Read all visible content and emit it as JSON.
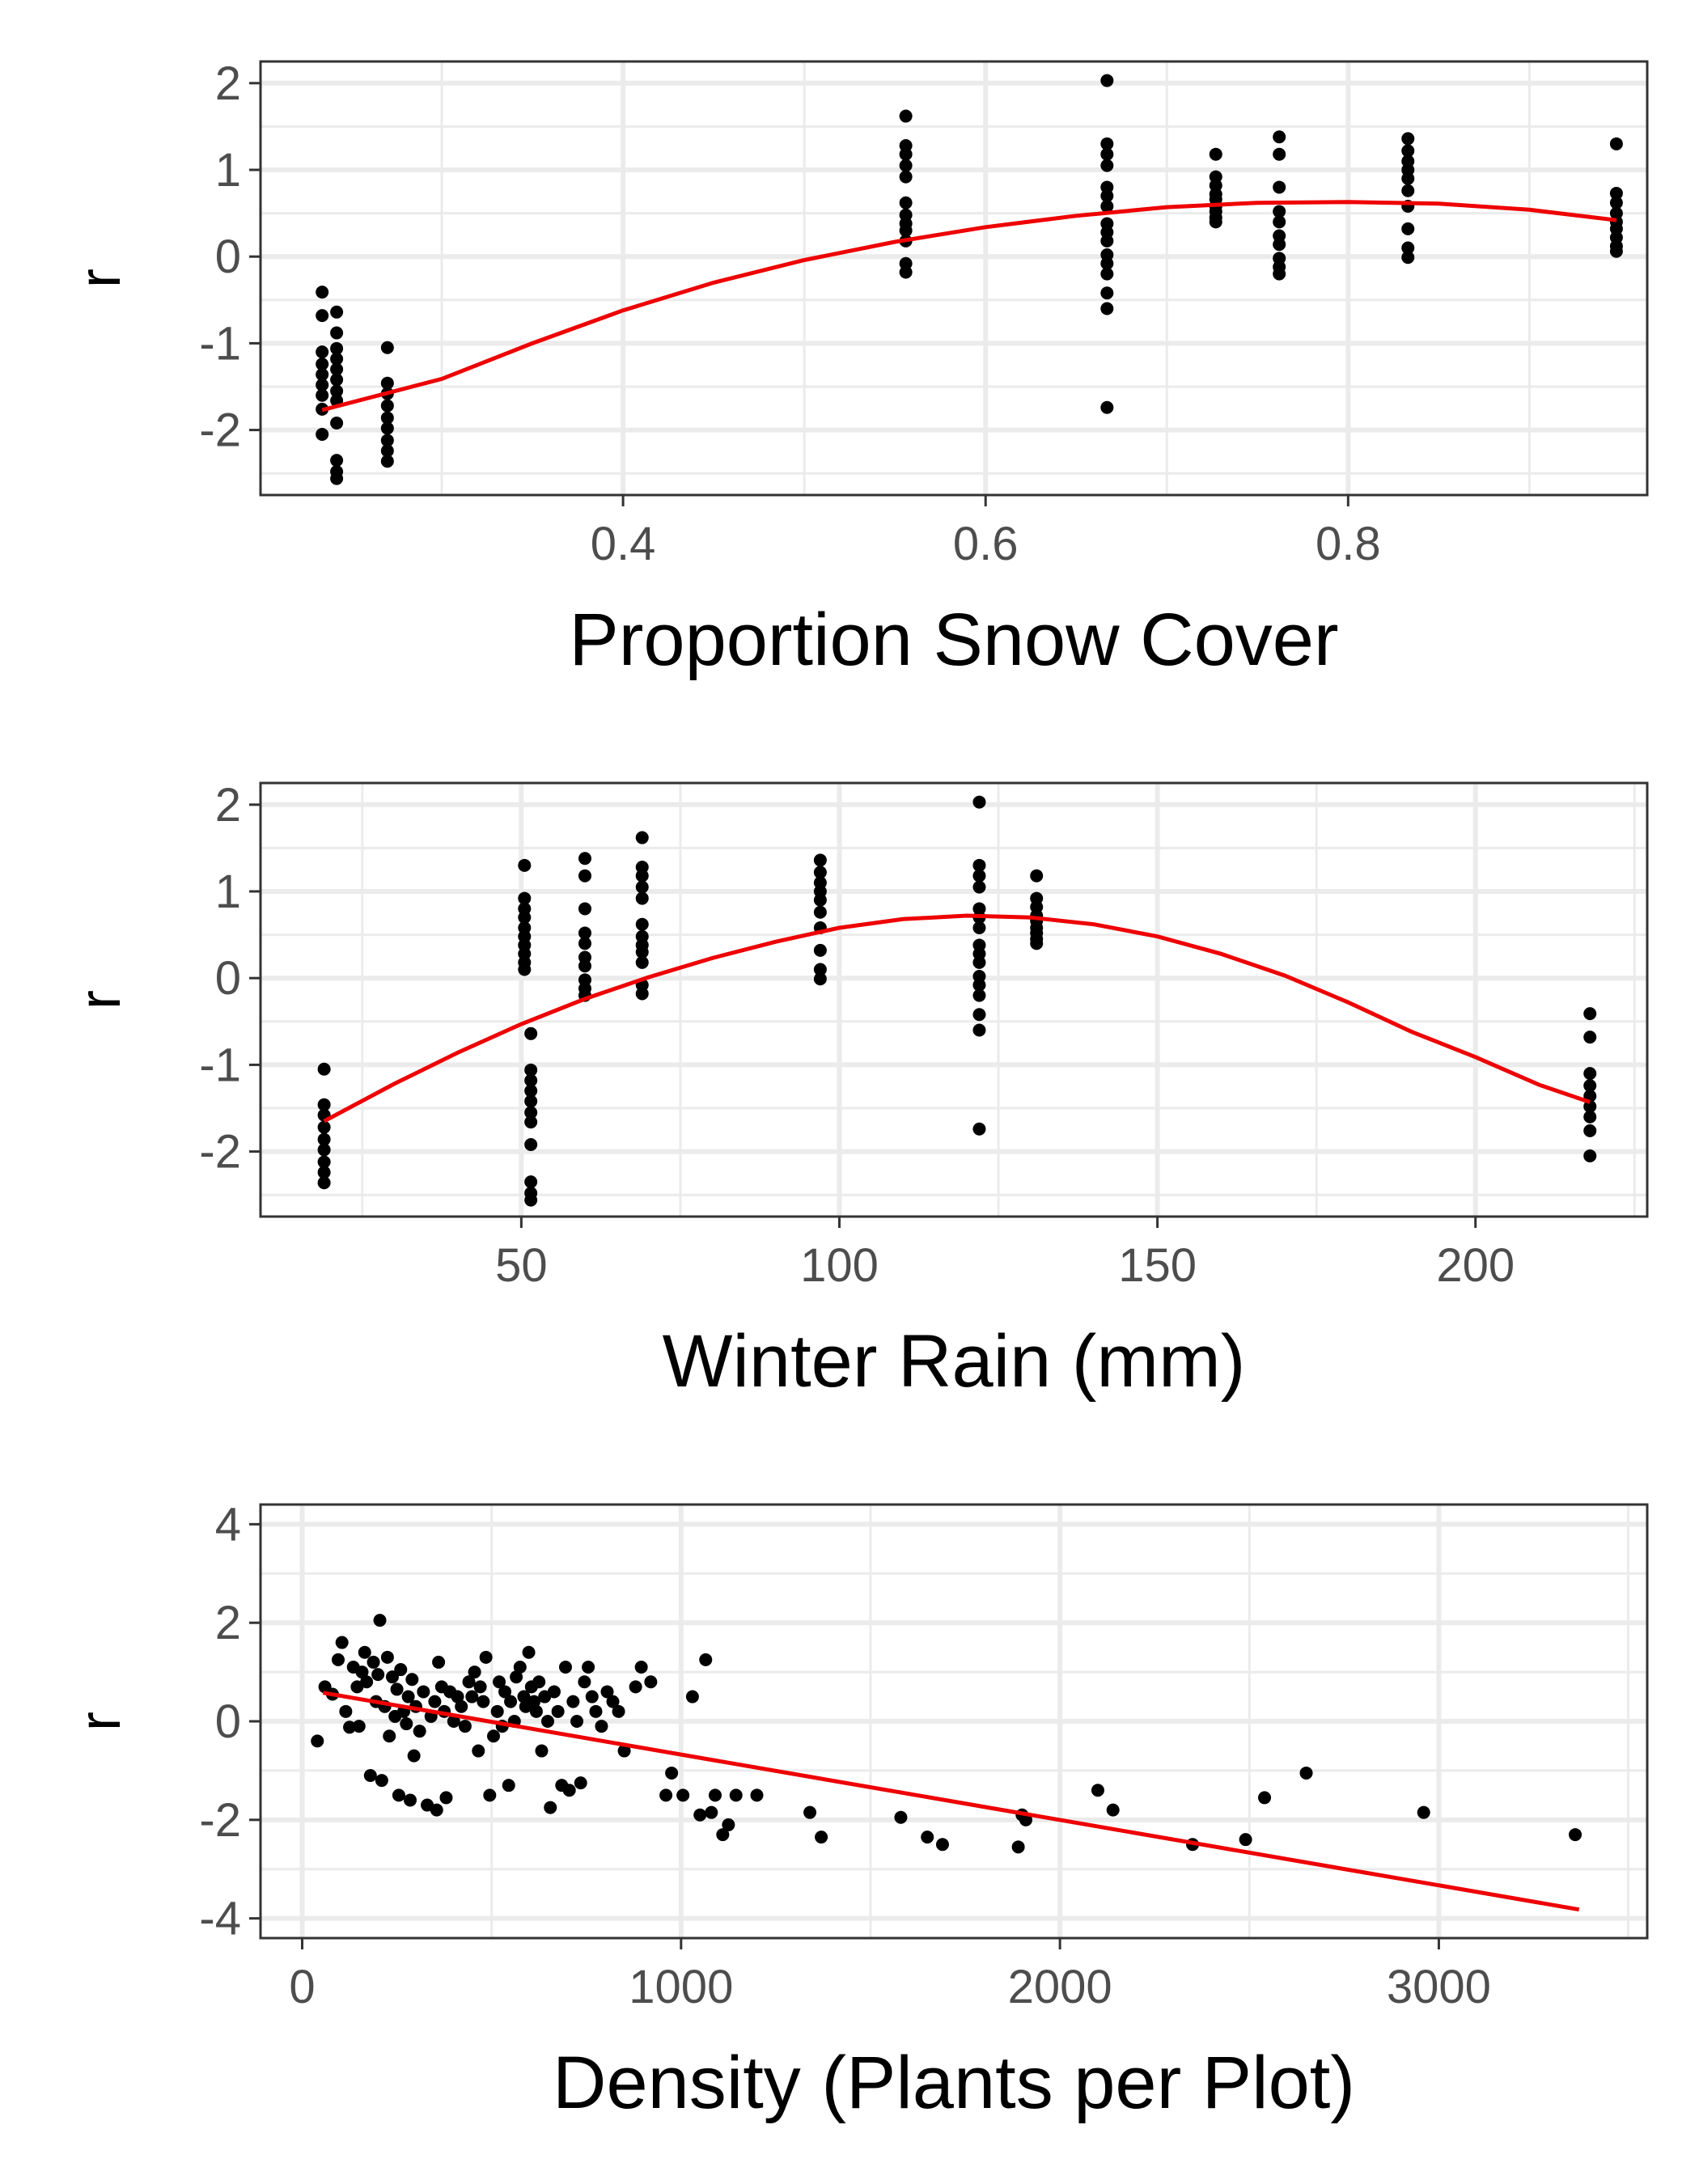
{
  "colors": {
    "points": "#000000",
    "fit_line": "#ee0000",
    "grid": "#ebebeb",
    "panel_border": "#333333"
  },
  "chart_data": [
    {
      "type": "scatter",
      "xlabel": "Proportion Snow Cover",
      "ylabel": "r",
      "xlim": [
        0.2,
        0.965
      ],
      "ylim": [
        -2.75,
        2.25
      ],
      "xticks": [
        0.4,
        0.6,
        0.8
      ],
      "xtick_labels": [
        "0.4",
        "0.6",
        "0.8"
      ],
      "yticks": [
        -2,
        -1,
        0,
        1,
        2
      ],
      "ytick_labels": [
        "-2",
        "-1",
        "0",
        "1",
        "2"
      ],
      "grid": true,
      "points": [
        [
          0.234,
          -0.41
        ],
        [
          0.234,
          -0.68
        ],
        [
          0.234,
          -1.1
        ],
        [
          0.234,
          -1.24
        ],
        [
          0.234,
          -1.36
        ],
        [
          0.234,
          -1.48
        ],
        [
          0.234,
          -1.6
        ],
        [
          0.234,
          -1.76
        ],
        [
          0.234,
          -2.05
        ],
        [
          0.242,
          -0.64
        ],
        [
          0.242,
          -0.88
        ],
        [
          0.242,
          -1.06
        ],
        [
          0.242,
          -1.18
        ],
        [
          0.242,
          -1.3
        ],
        [
          0.242,
          -1.42
        ],
        [
          0.242,
          -1.55
        ],
        [
          0.242,
          -1.66
        ],
        [
          0.242,
          -1.92
        ],
        [
          0.242,
          -2.35
        ],
        [
          0.242,
          -2.48
        ],
        [
          0.242,
          -2.56
        ],
        [
          0.27,
          -1.05
        ],
        [
          0.27,
          -1.46
        ],
        [
          0.27,
          -1.58
        ],
        [
          0.27,
          -1.72
        ],
        [
          0.27,
          -1.86
        ],
        [
          0.27,
          -1.98
        ],
        [
          0.27,
          -2.12
        ],
        [
          0.27,
          -2.24
        ],
        [
          0.27,
          -2.36
        ],
        [
          0.556,
          1.62
        ],
        [
          0.556,
          1.28
        ],
        [
          0.556,
          1.18
        ],
        [
          0.556,
          1.05
        ],
        [
          0.556,
          0.92
        ],
        [
          0.556,
          0.62
        ],
        [
          0.556,
          0.48
        ],
        [
          0.556,
          0.38
        ],
        [
          0.556,
          0.3
        ],
        [
          0.556,
          0.18
        ],
        [
          0.556,
          -0.08
        ],
        [
          0.556,
          -0.18
        ],
        [
          0.667,
          2.03
        ],
        [
          0.667,
          1.3
        ],
        [
          0.667,
          1.18
        ],
        [
          0.667,
          1.05
        ],
        [
          0.667,
          0.8
        ],
        [
          0.667,
          0.7
        ],
        [
          0.667,
          0.58
        ],
        [
          0.667,
          0.38
        ],
        [
          0.667,
          0.28
        ],
        [
          0.667,
          0.18
        ],
        [
          0.667,
          0.02
        ],
        [
          0.667,
          -0.08
        ],
        [
          0.667,
          -0.2
        ],
        [
          0.667,
          -0.42
        ],
        [
          0.667,
          -0.6
        ],
        [
          0.667,
          -1.74
        ],
        [
          0.727,
          1.18
        ],
        [
          0.727,
          0.92
        ],
        [
          0.727,
          0.82
        ],
        [
          0.727,
          0.72
        ],
        [
          0.727,
          0.66
        ],
        [
          0.727,
          0.58
        ],
        [
          0.727,
          0.52
        ],
        [
          0.727,
          0.45
        ],
        [
          0.727,
          0.4
        ],
        [
          0.762,
          1.38
        ],
        [
          0.762,
          1.18
        ],
        [
          0.762,
          0.8
        ],
        [
          0.762,
          0.52
        ],
        [
          0.762,
          0.4
        ],
        [
          0.762,
          0.24
        ],
        [
          0.762,
          0.14
        ],
        [
          0.762,
          -0.02
        ],
        [
          0.762,
          -0.12
        ],
        [
          0.762,
          -0.2
        ],
        [
          0.833,
          1.36
        ],
        [
          0.833,
          1.22
        ],
        [
          0.833,
          1.1
        ],
        [
          0.833,
          1.0
        ],
        [
          0.833,
          0.9
        ],
        [
          0.833,
          0.76
        ],
        [
          0.833,
          0.58
        ],
        [
          0.833,
          0.32
        ],
        [
          0.833,
          0.1
        ],
        [
          0.833,
          -0.01
        ],
        [
          0.948,
          1.3
        ],
        [
          0.948,
          0.73
        ],
        [
          0.948,
          0.62
        ],
        [
          0.948,
          0.5
        ],
        [
          0.948,
          0.4
        ],
        [
          0.948,
          0.32
        ],
        [
          0.948,
          0.22
        ],
        [
          0.948,
          0.12
        ],
        [
          0.948,
          0.06
        ]
      ],
      "fit_line": {
        "x": [
          0.234,
          0.3,
          0.35,
          0.4,
          0.45,
          0.5,
          0.55,
          0.6,
          0.65,
          0.7,
          0.75,
          0.8,
          0.85,
          0.9,
          0.948
        ],
        "y": [
          -1.77,
          -1.41,
          -1.0,
          -0.62,
          -0.3,
          -0.04,
          0.17,
          0.34,
          0.47,
          0.57,
          0.62,
          0.63,
          0.61,
          0.54,
          0.42
        ]
      }
    },
    {
      "type": "scatter",
      "xlabel": "Winter Rain (mm)",
      "ylabel": "r",
      "xlim": [
        9,
        227
      ],
      "ylim": [
        -2.75,
        2.25
      ],
      "xticks": [
        50,
        100,
        150,
        200
      ],
      "xtick_labels": [
        "50",
        "100",
        "150",
        "200"
      ],
      "yticks": [
        -2,
        -1,
        0,
        1,
        2
      ],
      "ytick_labels": [
        "-2",
        "-1",
        "0",
        "1",
        "2"
      ],
      "grid": true,
      "points": [
        [
          19,
          -1.05
        ],
        [
          19,
          -1.46
        ],
        [
          19,
          -1.58
        ],
        [
          19,
          -1.72
        ],
        [
          19,
          -1.86
        ],
        [
          19,
          -1.98
        ],
        [
          19,
          -2.12
        ],
        [
          19,
          -2.24
        ],
        [
          19,
          -2.36
        ],
        [
          50.5,
          1.3
        ],
        [
          50.5,
          0.92
        ],
        [
          50.5,
          0.8
        ],
        [
          50.5,
          0.7
        ],
        [
          50.5,
          0.58
        ],
        [
          50.5,
          0.48
        ],
        [
          50.5,
          0.38
        ],
        [
          50.5,
          0.28
        ],
        [
          50.5,
          0.18
        ],
        [
          50.5,
          0.1
        ],
        [
          51.5,
          -0.64
        ],
        [
          51.5,
          -1.06
        ],
        [
          51.5,
          -1.18
        ],
        [
          51.5,
          -1.3
        ],
        [
          51.5,
          -1.42
        ],
        [
          51.5,
          -1.55
        ],
        [
          51.5,
          -1.66
        ],
        [
          51.5,
          -1.92
        ],
        [
          51.5,
          -2.35
        ],
        [
          51.5,
          -2.48
        ],
        [
          51.5,
          -2.56
        ],
        [
          60,
          1.38
        ],
        [
          60,
          1.18
        ],
        [
          60,
          0.8
        ],
        [
          60,
          0.52
        ],
        [
          60,
          0.4
        ],
        [
          60,
          0.24
        ],
        [
          60,
          0.14
        ],
        [
          60,
          -0.02
        ],
        [
          60,
          -0.12
        ],
        [
          60,
          -0.2
        ],
        [
          69,
          1.62
        ],
        [
          69,
          1.28
        ],
        [
          69,
          1.18
        ],
        [
          69,
          1.05
        ],
        [
          69,
          0.92
        ],
        [
          69,
          0.62
        ],
        [
          69,
          0.48
        ],
        [
          69,
          0.38
        ],
        [
          69,
          0.3
        ],
        [
          69,
          0.18
        ],
        [
          69,
          -0.08
        ],
        [
          69,
          -0.18
        ],
        [
          97,
          1.36
        ],
        [
          97,
          1.22
        ],
        [
          97,
          1.1
        ],
        [
          97,
          1.0
        ],
        [
          97,
          0.9
        ],
        [
          97,
          0.76
        ],
        [
          97,
          0.58
        ],
        [
          97,
          0.32
        ],
        [
          97,
          0.1
        ],
        [
          97,
          -0.01
        ],
        [
          122,
          2.03
        ],
        [
          122,
          1.3
        ],
        [
          122,
          1.18
        ],
        [
          122,
          1.05
        ],
        [
          122,
          0.8
        ],
        [
          122,
          0.7
        ],
        [
          122,
          0.58
        ],
        [
          122,
          0.38
        ],
        [
          122,
          0.28
        ],
        [
          122,
          0.18
        ],
        [
          122,
          0.02
        ],
        [
          122,
          -0.08
        ],
        [
          122,
          -0.2
        ],
        [
          122,
          -0.42
        ],
        [
          122,
          -0.6
        ],
        [
          122,
          -1.74
        ],
        [
          131,
          1.18
        ],
        [
          131,
          0.92
        ],
        [
          131,
          0.82
        ],
        [
          131,
          0.72
        ],
        [
          131,
          0.66
        ],
        [
          131,
          0.58
        ],
        [
          131,
          0.52
        ],
        [
          131,
          0.45
        ],
        [
          131,
          0.4
        ],
        [
          218,
          -0.41
        ],
        [
          218,
          -0.68
        ],
        [
          218,
          -1.1
        ],
        [
          218,
          -1.24
        ],
        [
          218,
          -1.36
        ],
        [
          218,
          -1.48
        ],
        [
          218,
          -1.6
        ],
        [
          218,
          -1.76
        ],
        [
          218,
          -2.05
        ]
      ],
      "fit_line": {
        "x": [
          19,
          30,
          40,
          50,
          60,
          70,
          80,
          90,
          100,
          110,
          120,
          130,
          140,
          150,
          160,
          170,
          180,
          190,
          200,
          210,
          218
        ],
        "y": [
          -1.65,
          -1.22,
          -0.86,
          -0.53,
          -0.24,
          0.01,
          0.23,
          0.42,
          0.58,
          0.68,
          0.72,
          0.7,
          0.62,
          0.48,
          0.28,
          0.03,
          -0.28,
          -0.62,
          -0.91,
          -1.23,
          -1.43
        ]
      }
    },
    {
      "type": "scatter",
      "xlabel": "Density (Plants per Plot)",
      "ylabel": "r",
      "xlim": [
        -110,
        3550
      ],
      "ylim": [
        -4.4,
        4.4
      ],
      "xticks": [
        0,
        1000,
        2000,
        3000
      ],
      "xtick_labels": [
        "0",
        "1000",
        "2000",
        "3000"
      ],
      "yticks": [
        -4,
        -2,
        0,
        2,
        4
      ],
      "ytick_labels": [
        "-4",
        "-2",
        "0",
        "2",
        "4"
      ],
      "grid": true,
      "points": [
        [
          40,
          -0.4
        ],
        [
          60,
          0.7
        ],
        [
          80,
          0.55
        ],
        [
          95,
          1.25
        ],
        [
          105,
          1.6
        ],
        [
          115,
          0.2
        ],
        [
          125,
          -0.12
        ],
        [
          135,
          1.1
        ],
        [
          145,
          0.7
        ],
        [
          150,
          -0.1
        ],
        [
          158,
          1.0
        ],
        [
          165,
          1.4
        ],
        [
          170,
          0.8
        ],
        [
          180,
          -1.1
        ],
        [
          188,
          1.2
        ],
        [
          195,
          0.4
        ],
        [
          200,
          0.95
        ],
        [
          205,
          2.05
        ],
        [
          210,
          -1.2
        ],
        [
          218,
          0.3
        ],
        [
          225,
          1.3
        ],
        [
          230,
          -0.3
        ],
        [
          238,
          0.9
        ],
        [
          245,
          0.1
        ],
        [
          250,
          0.65
        ],
        [
          255,
          -1.5
        ],
        [
          260,
          1.05
        ],
        [
          268,
          0.2
        ],
        [
          275,
          -0.05
        ],
        [
          280,
          0.5
        ],
        [
          285,
          -1.6
        ],
        [
          290,
          0.85
        ],
        [
          295,
          -0.7
        ],
        [
          300,
          0.3
        ],
        [
          310,
          -0.2
        ],
        [
          320,
          0.6
        ],
        [
          330,
          -1.7
        ],
        [
          340,
          0.1
        ],
        [
          350,
          0.4
        ],
        [
          355,
          -1.8
        ],
        [
          360,
          1.2
        ],
        [
          368,
          0.7
        ],
        [
          375,
          0.2
        ],
        [
          380,
          -1.55
        ],
        [
          390,
          0.6
        ],
        [
          400,
          0.0
        ],
        [
          410,
          0.5
        ],
        [
          420,
          0.3
        ],
        [
          430,
          -0.1
        ],
        [
          440,
          0.8
        ],
        [
          448,
          0.5
        ],
        [
          455,
          1.0
        ],
        [
          465,
          -0.6
        ],
        [
          470,
          0.7
        ],
        [
          478,
          0.4
        ],
        [
          485,
          1.3
        ],
        [
          495,
          -1.5
        ],
        [
          505,
          -0.3
        ],
        [
          515,
          0.2
        ],
        [
          520,
          0.8
        ],
        [
          528,
          -0.1
        ],
        [
          535,
          0.6
        ],
        [
          545,
          -1.3
        ],
        [
          550,
          0.4
        ],
        [
          560,
          0.0
        ],
        [
          565,
          0.9
        ],
        [
          575,
          1.1
        ],
        [
          585,
          0.5
        ],
        [
          590,
          0.3
        ],
        [
          598,
          1.4
        ],
        [
          605,
          0.7
        ],
        [
          612,
          0.4
        ],
        [
          618,
          0.2
        ],
        [
          625,
          0.8
        ],
        [
          632,
          -0.6
        ],
        [
          640,
          0.5
        ],
        [
          648,
          0.0
        ],
        [
          655,
          -1.75
        ],
        [
          665,
          0.6
        ],
        [
          675,
          0.2
        ],
        [
          685,
          -1.3
        ],
        [
          695,
          1.1
        ],
        [
          705,
          -1.4
        ],
        [
          715,
          0.4
        ],
        [
          725,
          0.0
        ],
        [
          735,
          -1.25
        ],
        [
          745,
          0.8
        ],
        [
          755,
          1.1
        ],
        [
          765,
          0.5
        ],
        [
          775,
          0.2
        ],
        [
          790,
          -0.1
        ],
        [
          805,
          0.6
        ],
        [
          820,
          0.4
        ],
        [
          835,
          0.2
        ],
        [
          850,
          -0.6
        ],
        [
          880,
          0.7
        ],
        [
          895,
          1.1
        ],
        [
          920,
          0.8
        ],
        [
          960,
          -1.5
        ],
        [
          975,
          -1.05
        ],
        [
          1005,
          -1.5
        ],
        [
          1030,
          0.5
        ],
        [
          1050,
          -1.9
        ],
        [
          1065,
          1.25
        ],
        [
          1080,
          -1.85
        ],
        [
          1090,
          -1.5
        ],
        [
          1110,
          -2.3
        ],
        [
          1125,
          -2.1
        ],
        [
          1145,
          -1.5
        ],
        [
          1200,
          -1.5
        ],
        [
          1340,
          -1.85
        ],
        [
          1370,
          -2.35
        ],
        [
          1580,
          -1.95
        ],
        [
          1650,
          -2.35
        ],
        [
          1690,
          -2.5
        ],
        [
          1890,
          -2.55
        ],
        [
          1900,
          -1.9
        ],
        [
          1910,
          -2.0
        ],
        [
          2100,
          -1.4
        ],
        [
          2140,
          -1.8
        ],
        [
          2350,
          -2.5
        ],
        [
          2490,
          -2.4
        ],
        [
          2540,
          -1.55
        ],
        [
          2650,
          -1.05
        ],
        [
          2960,
          -1.85
        ],
        [
          3360,
          -2.3
        ]
      ],
      "fit_line": {
        "x": [
          55,
          3370
        ],
        "y": [
          0.58,
          -3.82
        ]
      }
    }
  ]
}
